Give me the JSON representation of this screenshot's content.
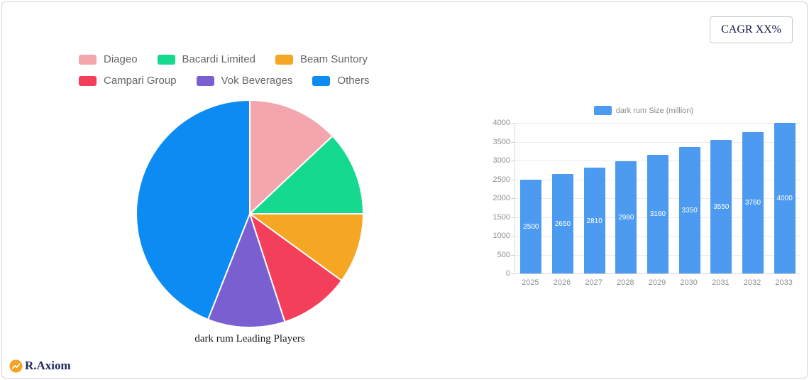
{
  "card": {
    "cagr_label": "CAGR XX%"
  },
  "branding": {
    "logo_text": "R.Axiom"
  },
  "chart_data": [
    {
      "type": "pie",
      "title": "dark rum Leading Players",
      "legend_position": "top",
      "start_angle_deg": 0,
      "series": [
        {
          "name": "Diageo",
          "value": 13,
          "color": "#f3a6ad"
        },
        {
          "name": "Bacardi Limited",
          "value": 12,
          "color": "#15d98f"
        },
        {
          "name": "Beam Suntory",
          "value": 10,
          "color": "#f5a623"
        },
        {
          "name": "Campari Group",
          "value": 10,
          "color": "#f43f5b"
        },
        {
          "name": "Vok Beverages",
          "value": 11,
          "color": "#7a5fd0"
        },
        {
          "name": "Others",
          "value": 44,
          "color": "#0c8bf2"
        }
      ]
    },
    {
      "type": "bar",
      "legend": "dark rum Size (million)",
      "categories": [
        "2025",
        "2026",
        "2027",
        "2028",
        "2029",
        "2030",
        "2031",
        "2032",
        "2033"
      ],
      "values": [
        2500,
        2650,
        2810,
        2980,
        3160,
        3350,
        3550,
        3760,
        4000
      ],
      "bar_color": "#4d9bf0",
      "ylim": [
        0,
        4000
      ],
      "y_ticks": [
        0,
        500,
        1000,
        1500,
        2000,
        2500,
        3000,
        3500,
        4000
      ],
      "grid": true,
      "xlabel": "",
      "ylabel": ""
    }
  ]
}
